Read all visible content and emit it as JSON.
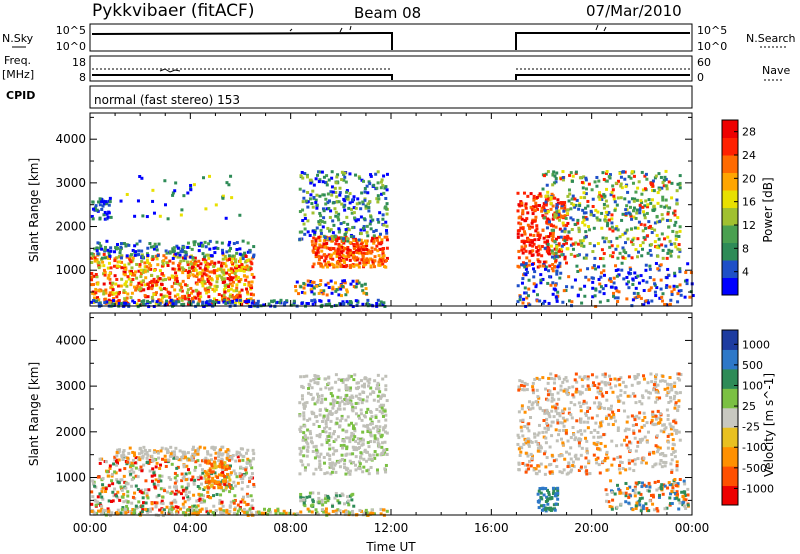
{
  "header": {
    "station": "Pykkvibaer (fitACF)",
    "beam": "Beam 08",
    "date": "07/Mar/2010"
  },
  "side_labels": {
    "nsky": "N.Sky",
    "nsearch": "N.Search",
    "freq_line1": "Freq.",
    "freq_line2": "[MHz]",
    "nave": "Nave",
    "cpid": "CPID"
  },
  "time_axis": {
    "label": "Time UT",
    "ticks": [
      "00:00",
      "04:00",
      "08:00",
      "12:00",
      "16:00",
      "20:00",
      "00:00"
    ]
  },
  "colors": {
    "power_scale": [
      "#0000ff",
      "#1e4fc8",
      "#2e8b57",
      "#4aa050",
      "#a0c030",
      "#e8e000",
      "#ffa500",
      "#ff6a00",
      "#ff2000",
      "#ee0000"
    ],
    "velocity_scale": [
      "#1e3ca0",
      "#2e78c8",
      "#2e8b57",
      "#7bc043",
      "#c8c8c0",
      "#e8c020",
      "#ff9000",
      "#ff5000",
      "#ee0000"
    ],
    "ground_scatter": "#c0c0b8"
  },
  "chart_data": [
    {
      "name": "nsky_nsearch",
      "type": "line",
      "ylabels_left": [
        "10^5",
        "10^0"
      ],
      "ylabels_right": [
        "10^5",
        "10^0"
      ],
      "gap_hours": [
        12,
        17
      ]
    },
    {
      "name": "freq_nave",
      "type": "line",
      "ylabels_left": [
        "18",
        "8"
      ],
      "ylabels_right": [
        "60",
        "0"
      ],
      "gap_hours": [
        12,
        17
      ]
    },
    {
      "name": "cpid",
      "type": "table",
      "text": "normal (fast stereo) 153"
    },
    {
      "name": "power",
      "type": "heatmap",
      "ylabel": "Slant Range [km]",
      "yticks": [
        1000,
        2000,
        3000,
        4000
      ],
      "ylim": [
        180,
        4600
      ],
      "xlim_hours": [
        0,
        24
      ],
      "colorbar_label": "Power [dB]",
      "colorbar_ticks": [
        "4",
        "8",
        "12",
        "16",
        "20",
        "24",
        "28"
      ]
    },
    {
      "name": "velocity",
      "type": "heatmap",
      "ylabel": "Slant Range [km]",
      "yticks": [
        1000,
        2000,
        3000,
        4000
      ],
      "ylim": [
        180,
        4600
      ],
      "xlim_hours": [
        0,
        24
      ],
      "colorbar_label": "Velocity [m s^-1]",
      "colorbar_ticks": [
        "1000",
        "500",
        "100",
        "25",
        "-25",
        "-100",
        "-500",
        "-1000"
      ]
    }
  ]
}
